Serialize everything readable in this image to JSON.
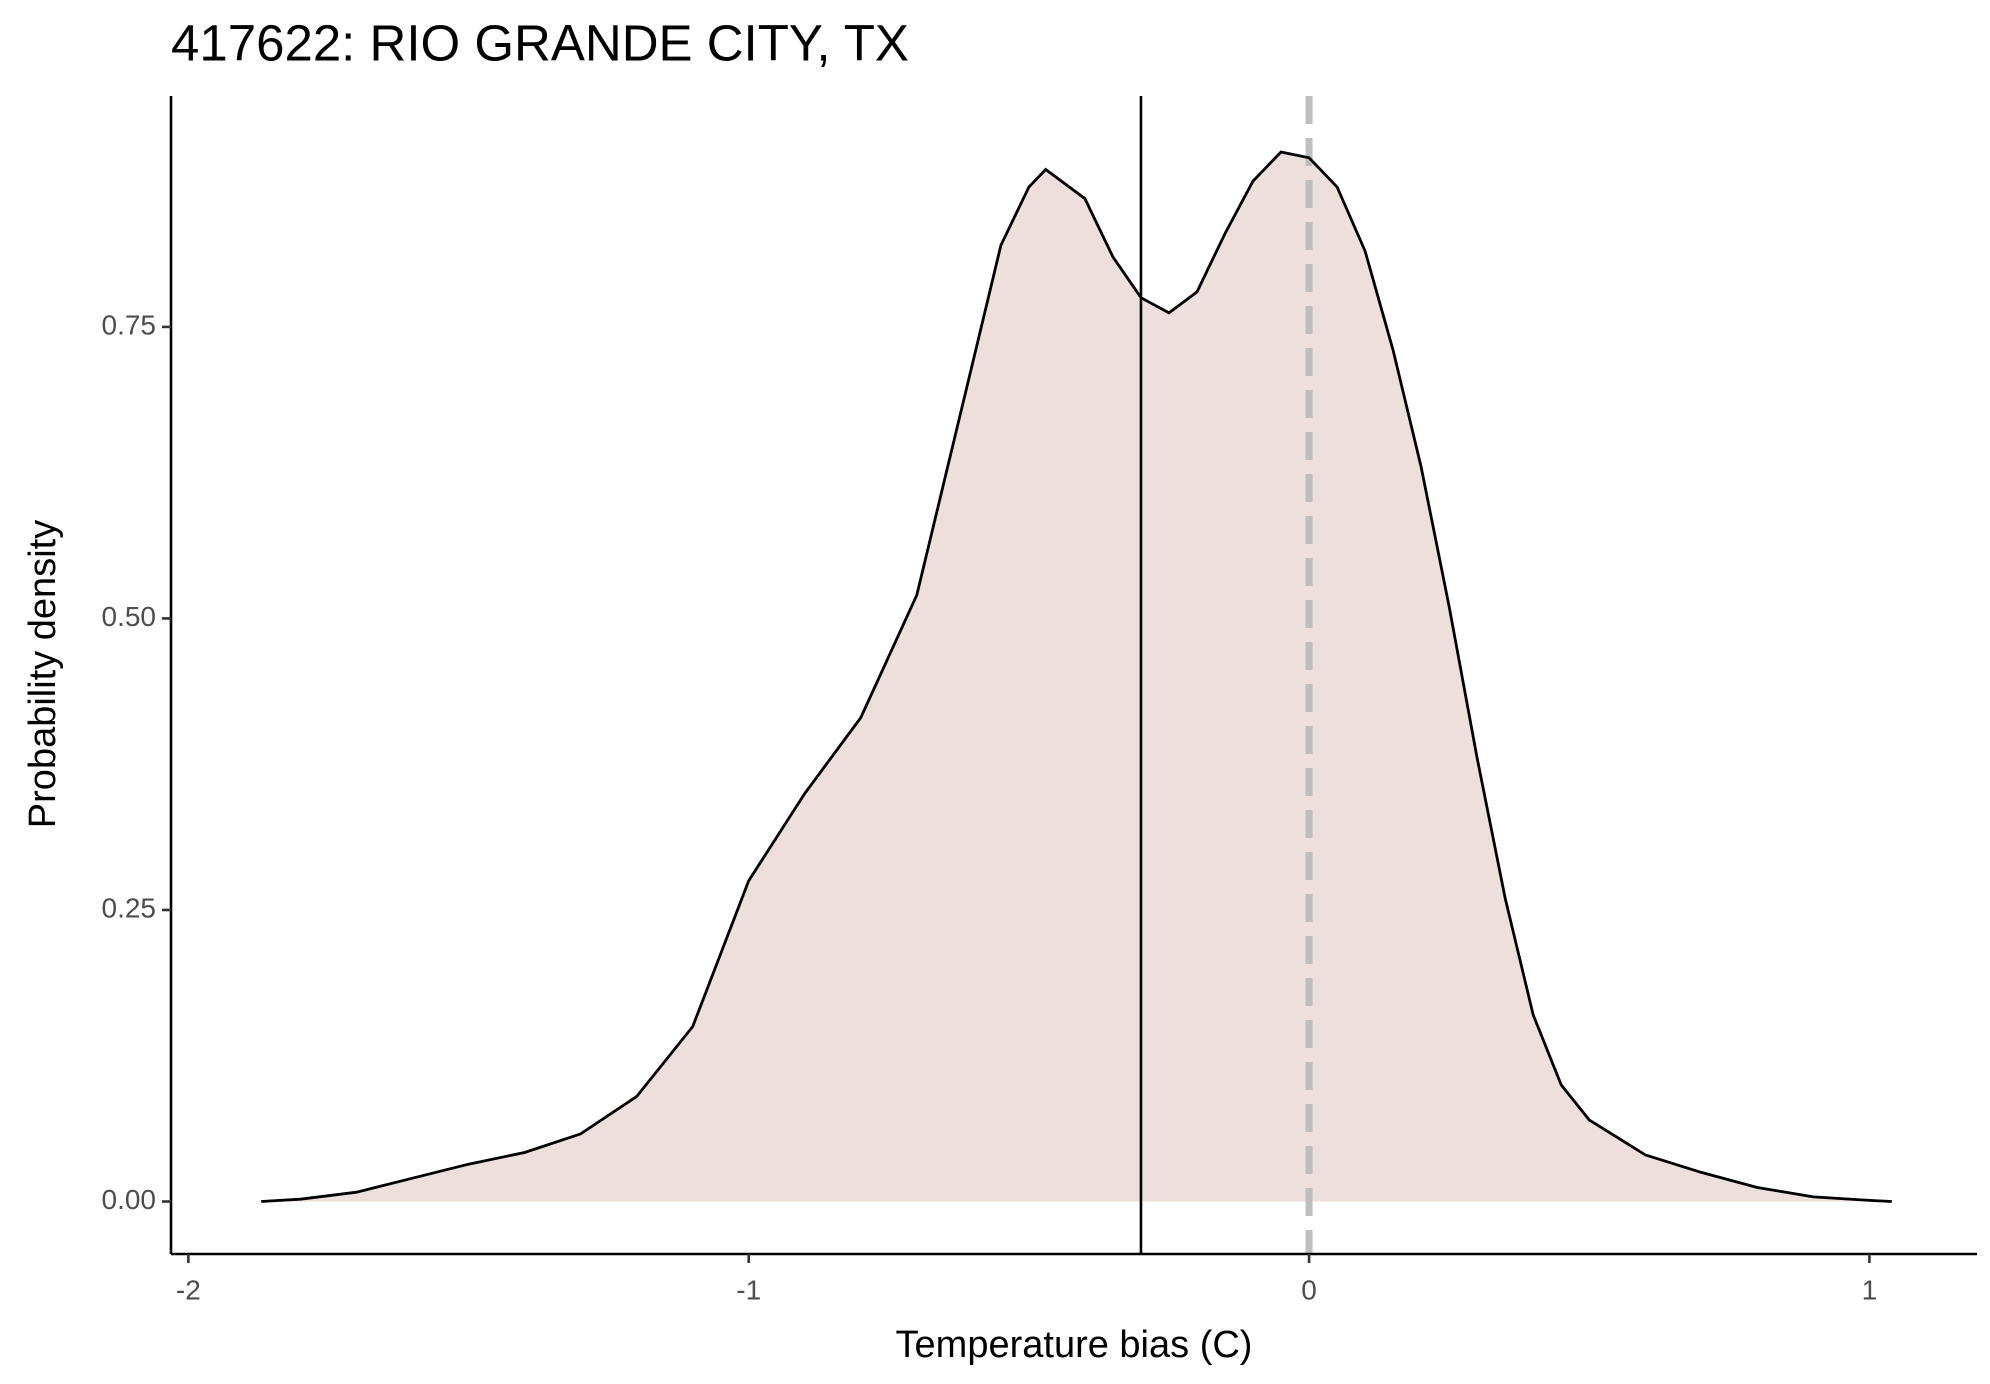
{
  "chart_data": {
    "type": "density",
    "title": "417622: RIO GRANDE CITY, TX",
    "x_label": "Temperature bias (C)",
    "y_label": "Probability density",
    "x": [
      -1.87,
      -1.8,
      -1.7,
      -1.6,
      -1.5,
      -1.4,
      -1.3,
      -1.2,
      -1.1,
      -1.0,
      -0.9,
      -0.8,
      -0.7,
      -0.6,
      -0.55,
      -0.5,
      -0.47,
      -0.4,
      -0.35,
      -0.3,
      -0.25,
      -0.2,
      -0.15,
      -0.1,
      -0.05,
      0,
      0.05,
      0.1,
      0.15,
      0.2,
      0.25,
      0.3,
      0.35,
      0.4,
      0.45,
      0.5,
      0.6,
      0.7,
      0.8,
      0.9,
      1.0,
      1.04
    ],
    "values": [
      0,
      0.002,
      0.008,
      0.02,
      0.032,
      0.042,
      0.058,
      0.09,
      0.15,
      0.275,
      0.35,
      0.415,
      0.52,
      0.72,
      0.82,
      0.87,
      0.885,
      0.86,
      0.81,
      0.775,
      0.762,
      0.78,
      0.83,
      0.875,
      0.9,
      0.895,
      0.87,
      0.815,
      0.73,
      0.63,
      0.51,
      0.38,
      0.26,
      0.16,
      0.1,
      0.07,
      0.04,
      0.025,
      0.012,
      0.004,
      0.001,
      0
    ],
    "color": "#000000",
    "fill": "#ecdfdc",
    "vlines": [
      {
        "x": -0.3,
        "style": "solid",
        "color": "#000000"
      },
      {
        "x": 0,
        "style": "dashed",
        "color": "#bebebe"
      }
    ],
    "xlim": [
      -2.031,
      1.192
    ],
    "ylim": [
      -0.045,
      0.948
    ],
    "xticks": [
      -2,
      -1,
      0,
      1
    ],
    "yticks": [
      {
        "value": 0,
        "label": "0.00"
      },
      {
        "value": 0.25,
        "label": "0.25"
      },
      {
        "value": 0.5,
        "label": "0.50"
      },
      {
        "value": 0.75,
        "label": "0.75"
      }
    ]
  }
}
